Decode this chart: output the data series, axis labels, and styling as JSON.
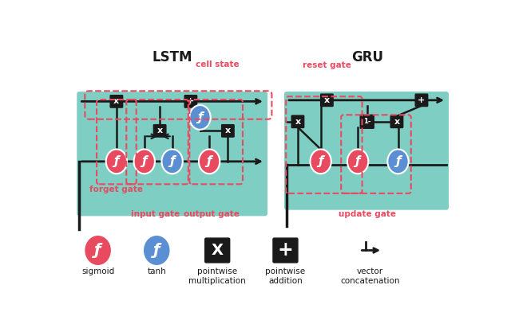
{
  "bg_color": "#ffffff",
  "teal_color": "#7ecec4",
  "red_color": "#e84a5f",
  "blue_color": "#5b8fd4",
  "black_color": "#1a1a1a",
  "dashed_color": "#e84a5f",
  "lstm_title": "LSTM",
  "gru_title": "GRU",
  "legend_items": [
    "sigmoid",
    "tanh",
    "pointwise\nmultiplication",
    "pointwise\naddition",
    "vector\nconcatenation"
  ],
  "gate_labels_lstm": [
    "forget gate",
    "cell state",
    "input gate",
    "output gate"
  ],
  "gate_labels_gru": [
    "reset gate",
    "update gate"
  ]
}
